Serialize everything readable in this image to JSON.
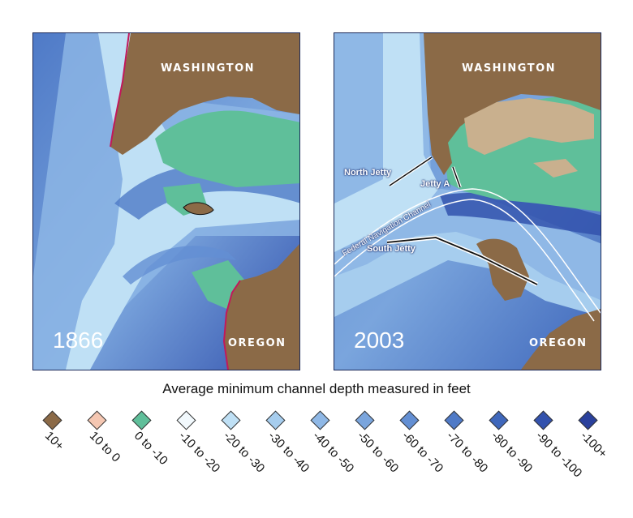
{
  "maps": [
    {
      "year": "1866",
      "labels": {
        "north": "WASHINGTON",
        "south": "OREGON"
      }
    },
    {
      "year": "2003",
      "labels": {
        "north": "WASHINGTON",
        "south": "OREGON"
      },
      "features": {
        "north_jetty": "North Jetty",
        "jetty_a": "Jetty A",
        "south_jetty": "South Jetty",
        "channel": "Federal Navigation Channel"
      }
    }
  ],
  "legend": {
    "title": "Average minimum channel depth measured in feet",
    "items": [
      {
        "label": "10+",
        "color": "#8b6a47"
      },
      {
        "label": "10 to 0",
        "color": "#f5c7b2"
      },
      {
        "label": "0 to -10",
        "color": "#5fbf9a"
      },
      {
        "label": "-10 to -20",
        "color": "#f2f9fd"
      },
      {
        "label": "-20 to -30",
        "color": "#bfe0f5"
      },
      {
        "label": "-30 to -40",
        "color": "#a6cdee"
      },
      {
        "label": "-40 to -50",
        "color": "#8fb8e6"
      },
      {
        "label": "-50 to -60",
        "color": "#7aa5dd"
      },
      {
        "label": "-60 to -70",
        "color": "#638fd3"
      },
      {
        "label": "-70 to -80",
        "color": "#4f7ac7"
      },
      {
        "label": "-80 to -90",
        "color": "#3f67bb"
      },
      {
        "label": "-90 to -100",
        "color": "#3352ad"
      },
      {
        "label": "-100+",
        "color": "#2a409c"
      }
    ]
  }
}
